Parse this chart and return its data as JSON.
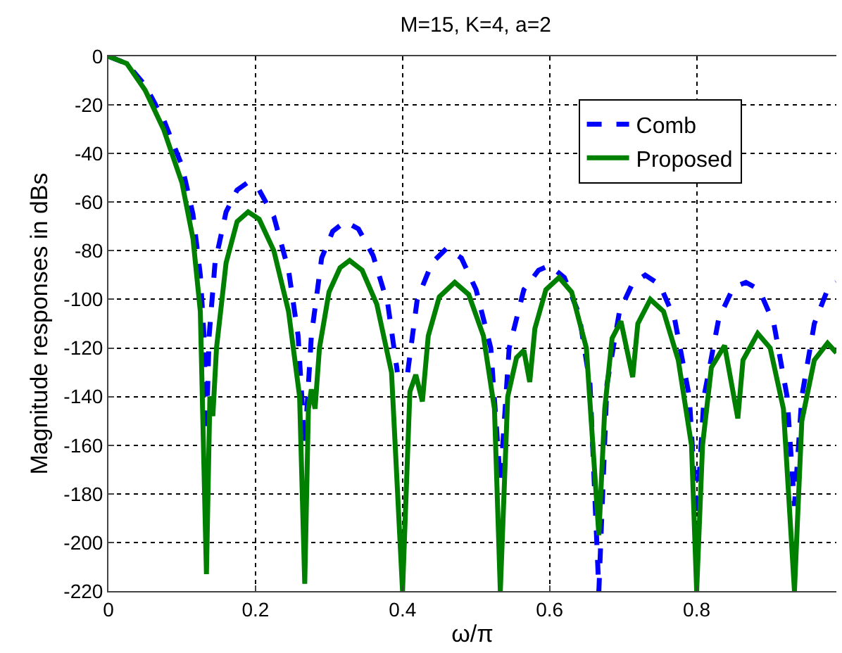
{
  "chart_data": {
    "type": "line",
    "title": "M=15, K=4, a=2",
    "xlabel": "ω/π",
    "ylabel": "Magnitude responses in dBs",
    "xlim": [
      0,
      0.99
    ],
    "ylim": [
      -220,
      0
    ],
    "xticks": [
      0,
      0.2,
      0.4,
      0.6,
      0.8
    ],
    "yticks": [
      0,
      -20,
      -40,
      -60,
      -80,
      -100,
      -120,
      -140,
      -160,
      -180,
      -200,
      -220
    ],
    "grid": true,
    "legend": "top right",
    "series": [
      {
        "name": "Comb",
        "color": "#0000ff",
        "line_style": "dashed",
        "x": [
          0,
          0.025,
          0.05,
          0.075,
          0.1,
          0.115,
          0.125,
          0.13,
          0.1333,
          0.137,
          0.145,
          0.16,
          0.175,
          0.189,
          0.205,
          0.225,
          0.245,
          0.258,
          0.267,
          0.276,
          0.29,
          0.305,
          0.322,
          0.34,
          0.36,
          0.38,
          0.393,
          0.4,
          0.407,
          0.42,
          0.44,
          0.46,
          0.48,
          0.5,
          0.52,
          0.533,
          0.545,
          0.565,
          0.585,
          0.6,
          0.62,
          0.64,
          0.655,
          0.667,
          0.678,
          0.695,
          0.712,
          0.73,
          0.75,
          0.77,
          0.79,
          0.8,
          0.81,
          0.83,
          0.85,
          0.867,
          0.885,
          0.905,
          0.923,
          0.933,
          0.943,
          0.96,
          0.978,
          0.99
        ],
        "values": [
          0,
          -3,
          -12,
          -26,
          -45,
          -65,
          -90,
          -115,
          -155,
          -115,
          -85,
          -64,
          -55,
          -52,
          -55,
          -66,
          -88,
          -115,
          -160,
          -115,
          -83,
          -72,
          -68,
          -71,
          -82,
          -102,
          -130,
          null,
          -130,
          -100,
          -85,
          -79,
          -83,
          -96,
          -120,
          -175,
          -120,
          -96,
          -88,
          -86,
          -91,
          -106,
          -135,
          -220,
          -135,
          -105,
          -94,
          -90,
          -94,
          -108,
          -140,
          -190,
          -140,
          -108,
          -95,
          -93,
          -96,
          -110,
          -140,
          -185,
          -140,
          -110,
          -96,
          -93
        ]
      },
      {
        "name": "Proposed",
        "color": "#008000",
        "line_style": "solid",
        "x": [
          0,
          0.025,
          0.05,
          0.075,
          0.1,
          0.115,
          0.125,
          0.1333,
          0.138,
          0.142,
          0.147,
          0.16,
          0.175,
          0.19,
          0.205,
          0.225,
          0.245,
          0.26,
          0.267,
          0.272,
          0.276,
          0.281,
          0.287,
          0.3,
          0.315,
          0.328,
          0.345,
          0.365,
          0.385,
          0.4,
          0.41,
          0.418,
          0.427,
          0.435,
          0.45,
          0.471,
          0.49,
          0.51,
          0.525,
          0.533,
          0.543,
          0.555,
          0.565,
          0.573,
          0.58,
          0.595,
          0.613,
          0.63,
          0.65,
          0.667,
          0.675,
          0.685,
          0.697,
          0.713,
          0.72,
          0.737,
          0.755,
          0.775,
          0.793,
          0.8,
          0.808,
          0.82,
          0.838,
          0.856,
          0.863,
          0.883,
          0.9,
          0.918,
          0.933,
          0.943,
          0.96,
          0.978,
          0.99
        ],
        "values": [
          0,
          -3,
          -14,
          -30,
          -52,
          -75,
          -105,
          -213,
          -140,
          -148,
          -120,
          -85,
          -68,
          -64,
          -67,
          -80,
          -105,
          -140,
          -217,
          -145,
          -137,
          -145,
          -120,
          -97,
          -87,
          -84,
          -88,
          -102,
          -130,
          -220,
          -138,
          -131,
          -142,
          -115,
          -99,
          -93,
          -98,
          -115,
          -145,
          -220,
          -140,
          -124,
          -121,
          -134,
          -112,
          -96,
          -91,
          -97,
          -120,
          -197,
          -145,
          -116,
          -109,
          -132,
          -110,
          -100,
          -105,
          -125,
          -160,
          -220,
          -160,
          -128,
          -119,
          -149,
          -125,
          -114,
          -120,
          -145,
          -220,
          -150,
          -125,
          -118,
          -122
        ]
      }
    ]
  }
}
